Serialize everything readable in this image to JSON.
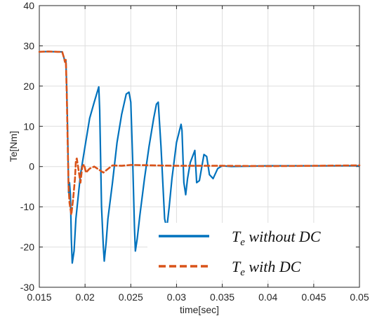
{
  "chart_data": {
    "type": "line",
    "title": "",
    "xlabel": "time[sec]",
    "ylabel": "Te[Nm]",
    "xlim": [
      0.015,
      0.05
    ],
    "ylim": [
      -30,
      40
    ],
    "xticks": [
      0.015,
      0.02,
      0.025,
      0.03,
      0.035,
      0.04,
      0.045,
      0.05
    ],
    "xtick_labels": [
      "0.015",
      "0.02",
      "0.025",
      "0.03",
      "0.035",
      "0.04",
      "0.045",
      "0.05"
    ],
    "yticks": [
      -30,
      -20,
      -10,
      0,
      10,
      20,
      30,
      40
    ],
    "ytick_labels": [
      "-30",
      "-20",
      "-10",
      "0",
      "10",
      "20",
      "30",
      "40"
    ],
    "grid": true,
    "legend_position": "bottom-right",
    "series": [
      {
        "name": "without DC",
        "legend_main": "T",
        "legend_sub": "e",
        "legend_rest": " without DC",
        "color": "#0072BD",
        "style": "solid",
        "x": [
          0.015,
          0.016,
          0.017,
          0.0175,
          0.0177,
          0.0178,
          0.0179,
          0.018,
          0.0181,
          0.0182,
          0.0183,
          0.0184,
          0.0185,
          0.0186,
          0.0188,
          0.019,
          0.0195,
          0.02,
          0.0205,
          0.021,
          0.0215,
          0.0216,
          0.0218,
          0.022,
          0.0221,
          0.0223,
          0.0225,
          0.023,
          0.0235,
          0.024,
          0.0245,
          0.0248,
          0.025,
          0.0252,
          0.0254,
          0.0255,
          0.0257,
          0.026,
          0.0265,
          0.027,
          0.0275,
          0.0278,
          0.028,
          0.0283,
          0.0285,
          0.0287,
          0.0289,
          0.029,
          0.0292,
          0.0295,
          0.03,
          0.0305,
          0.0306,
          0.0308,
          0.031,
          0.0312,
          0.0315,
          0.032,
          0.0322,
          0.0325,
          0.033,
          0.0333,
          0.0336,
          0.034,
          0.0345,
          0.035,
          0.036,
          0.04,
          0.045,
          0.05
        ],
        "y": [
          28.5,
          28.6,
          28.5,
          28.5,
          27.0,
          26.0,
          26.5,
          19.0,
          8.0,
          -6.5,
          -4.0,
          -7.0,
          -18.0,
          -24.0,
          -21.0,
          -13.0,
          -2.0,
          5.0,
          12.0,
          16.0,
          19.8,
          14.0,
          -10.0,
          -20.0,
          -23.5,
          -19.0,
          -13.0,
          -4.0,
          6.0,
          13.0,
          18.0,
          18.5,
          16.0,
          2.0,
          -15.0,
          -21.0,
          -18.0,
          -12.0,
          -3.0,
          5.0,
          12.0,
          15.5,
          16.0,
          5.0,
          -4.0,
          -13.0,
          -15.0,
          -14.0,
          -10.0,
          -3.0,
          6.0,
          10.5,
          9.0,
          -4.0,
          -7.0,
          -3.0,
          1.0,
          4.0,
          -4.0,
          -3.5,
          3.0,
          2.5,
          -2.0,
          -3.0,
          -0.5,
          0.2,
          0.0,
          0.2,
          0.2,
          0.2
        ]
      },
      {
        "name": "with DC",
        "legend_main": "T",
        "legend_sub": "e",
        "legend_rest": " with DC",
        "color": "#D95319",
        "style": "dashed",
        "x": [
          0.015,
          0.016,
          0.017,
          0.0175,
          0.0177,
          0.0178,
          0.0179,
          0.018,
          0.0181,
          0.0182,
          0.0183,
          0.0185,
          0.0187,
          0.0189,
          0.019,
          0.0191,
          0.0193,
          0.0195,
          0.0197,
          0.0199,
          0.0201,
          0.0205,
          0.021,
          0.022,
          0.023,
          0.024,
          0.025,
          0.03,
          0.035,
          0.04,
          0.045,
          0.05
        ],
        "y": [
          28.5,
          28.6,
          28.5,
          28.5,
          27.0,
          26.0,
          26.5,
          18.0,
          6.0,
          -5.0,
          -9.0,
          -12.0,
          -8.0,
          -3.0,
          1.5,
          2.0,
          -1.0,
          -4.0,
          0.0,
          0.5,
          -1.5,
          -0.5,
          0.0,
          -1.5,
          0.3,
          0.2,
          0.4,
          0.2,
          0.2,
          0.1,
          0.2,
          0.3
        ]
      }
    ]
  }
}
